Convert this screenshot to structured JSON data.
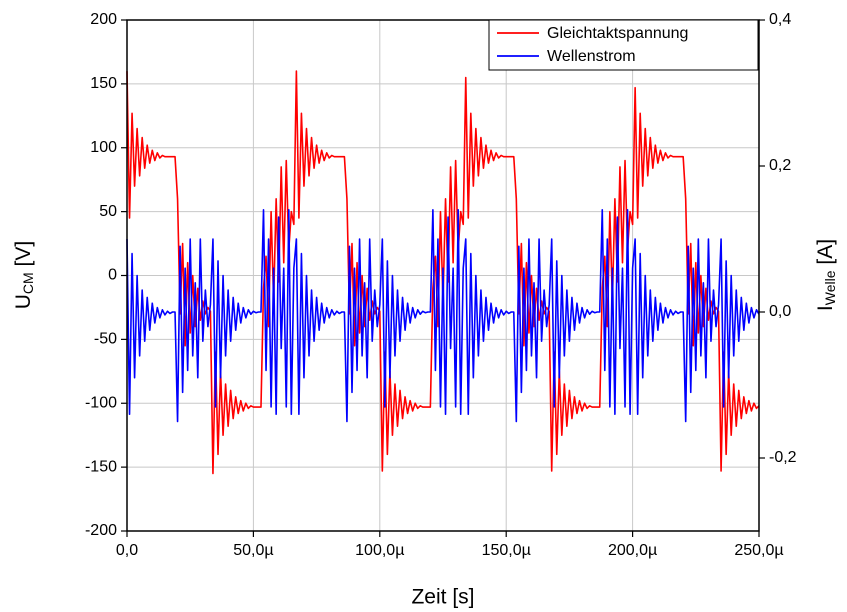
{
  "chart_data": {
    "type": "line",
    "xlabel": "Zeit [s]",
    "ylabel": {
      "main": "U",
      "sub": "CM",
      "unit": " [V]"
    },
    "y2label": {
      "main": "I",
      "sub": "Welle",
      "unit": " [A]"
    },
    "xlim": [
      0,
      250
    ],
    "xticks": [
      {
        "value": 0,
        "label": "0,0"
      },
      {
        "value": 50,
        "label": "50,0µ"
      },
      {
        "value": 100,
        "label": "100,0µ"
      },
      {
        "value": 150,
        "label": "150,0µ"
      },
      {
        "value": 200,
        "label": "200,0µ"
      },
      {
        "value": 250,
        "label": "250,0µ"
      }
    ],
    "ylim": [
      -200,
      200
    ],
    "yticks": [
      -200,
      -150,
      -100,
      -50,
      0,
      50,
      100,
      150,
      200
    ],
    "y2lim": [
      -0.3,
      0.4
    ],
    "y2ticks": [
      {
        "value": -0.2,
        "label": "-0,2"
      },
      {
        "value": 0,
        "label": "0,0"
      },
      {
        "value": 0.2,
        "label": "0,2"
      },
      {
        "value": 0.4,
        "label": "0,4"
      }
    ],
    "grid": true,
    "legend": "top-right",
    "x": [
      0,
      1,
      2,
      3,
      4,
      5,
      6,
      7,
      8,
      9,
      10,
      11,
      12,
      13,
      14,
      15,
      16,
      17,
      18,
      19,
      20,
      21,
      22,
      23,
      24,
      25,
      26,
      27,
      28,
      29,
      30,
      31,
      32,
      33,
      34,
      35,
      36,
      37,
      38,
      39,
      40,
      41,
      42,
      43,
      44,
      45,
      46,
      47,
      48,
      49,
      50,
      51,
      52,
      53,
      54,
      55,
      56,
      57,
      58,
      59,
      60,
      61,
      62,
      63,
      64,
      65,
      66,
      67,
      68,
      69,
      70,
      71,
      72,
      73,
      74,
      75,
      76,
      77,
      78,
      79,
      80,
      81,
      82,
      83,
      84,
      85,
      86,
      87,
      88,
      89,
      90,
      91,
      92,
      93,
      94,
      95,
      96,
      97,
      98,
      99,
      100,
      101,
      102,
      103,
      104,
      105,
      106,
      107,
      108,
      109,
      110,
      111,
      112,
      113,
      114,
      115,
      116,
      117,
      118,
      119,
      120,
      121,
      122,
      123,
      124,
      125,
      126,
      127,
      128,
      129,
      130,
      131,
      132,
      133,
      134,
      135,
      136,
      137,
      138,
      139,
      140,
      141,
      142,
      143,
      144,
      145,
      146,
      147,
      148,
      149,
      150,
      151,
      152,
      153,
      154,
      155,
      156,
      157,
      158,
      159,
      160,
      161,
      162,
      163,
      164,
      165,
      166,
      167,
      168,
      169,
      170,
      171,
      172,
      173,
      174,
      175,
      176,
      177,
      178,
      179,
      180,
      181,
      182,
      183,
      184,
      185,
      186,
      187,
      188,
      189,
      190,
      191,
      192,
      193,
      194,
      195,
      196,
      197,
      198,
      199,
      200,
      201,
      202,
      203,
      204,
      205,
      206,
      207,
      208,
      209,
      210,
      211,
      212,
      213,
      214,
      215,
      216,
      217,
      218,
      219,
      220,
      221,
      222,
      223,
      224,
      225,
      226,
      227,
      228,
      229,
      230,
      231,
      232,
      233,
      234,
      235,
      236,
      237,
      238,
      239,
      240,
      241,
      242,
      243,
      244,
      245,
      246,
      247,
      248,
      249,
      250
    ],
    "series": [
      {
        "name": "Gleichtaktspannung",
        "color": "#ff0000",
        "values": [
          160,
          45,
          127,
          70,
          115,
          78,
          108,
          84,
          102,
          88,
          98,
          90,
          96,
          92,
          94,
          93,
          93,
          93,
          93,
          93,
          60,
          -30,
          25,
          -55,
          10,
          -45,
          0,
          -40,
          -10,
          -35,
          -20,
          -30,
          -25,
          -28,
          -155,
          -60,
          -140,
          -75,
          -125,
          -85,
          -118,
          -90,
          -112,
          -95,
          -108,
          -98,
          -106,
          -100,
          -104,
          -102,
          -103,
          -103,
          -103,
          -103,
          -10,
          15,
          -40,
          50,
          -20,
          60,
          -5,
          85,
          10,
          90,
          20,
          50,
          40,
          160,
          45,
          127,
          70,
          115,
          78,
          108,
          84,
          102,
          88,
          98,
          90,
          96,
          92,
          94,
          93,
          93,
          93,
          93,
          93,
          60,
          -30,
          25,
          -55,
          10,
          -45,
          0,
          -40,
          -10,
          -35,
          -20,
          -30,
          -25,
          -28,
          -153,
          -60,
          -140,
          -75,
          -125,
          -85,
          -118,
          -90,
          -112,
          -95,
          -108,
          -98,
          -106,
          -100,
          -104,
          -102,
          -103,
          -103,
          -103,
          -103,
          -10,
          15,
          -40,
          50,
          -20,
          60,
          -5,
          85,
          10,
          90,
          20,
          50,
          40,
          155,
          45,
          127,
          70,
          115,
          78,
          108,
          84,
          102,
          88,
          98,
          90,
          96,
          92,
          94,
          93,
          93,
          93,
          93,
          93,
          60,
          -30,
          25,
          -55,
          10,
          -45,
          0,
          -40,
          -10,
          -35,
          -20,
          -30,
          -25,
          -28,
          -153,
          -60,
          -140,
          -75,
          -125,
          -85,
          -118,
          -90,
          -112,
          -95,
          -108,
          -98,
          -106,
          -100,
          -104,
          -102,
          -103,
          -103,
          -103,
          -103,
          -10,
          15,
          -40,
          50,
          -20,
          60,
          -5,
          85,
          10,
          90,
          20,
          50,
          40,
          147,
          45,
          127,
          70,
          115,
          78,
          108,
          84,
          102,
          88,
          98,
          90,
          96,
          92,
          94,
          93,
          93,
          93,
          93,
          93,
          60,
          -30,
          25,
          -55,
          10,
          -45,
          0,
          -40,
          -10,
          -35,
          -20,
          -30,
          -25,
          -28,
          -153,
          -60,
          -140,
          -75,
          -125,
          -85,
          -118,
          -90,
          -112,
          -95,
          -108,
          -98,
          -106,
          -100,
          -104,
          -102
        ]
      },
      {
        "name": "Wellenstrom",
        "color": "#0000ff",
        "axis": "y2",
        "values": [
          0.1,
          -0.14,
          0.08,
          -0.09,
          0.05,
          -0.06,
          0.03,
          -0.04,
          0.02,
          -0.025,
          0.012,
          -0.015,
          0.006,
          -0.008,
          0.003,
          -0.004,
          0.001,
          -0.002,
          0,
          0,
          -0.15,
          0.09,
          -0.11,
          0.06,
          -0.08,
          0.1,
          -0.06,
          0.04,
          -0.09,
          0.1,
          -0.04,
          0.03,
          -0.02,
          0.01,
          0.1,
          -0.13,
          0.07,
          -0.09,
          0.05,
          -0.06,
          0.03,
          -0.04,
          0.02,
          -0.025,
          0.012,
          -0.015,
          0.006,
          -0.008,
          0.003,
          -0.003,
          0.001,
          -0.001,
          0,
          0,
          0.14,
          -0.08,
          0.1,
          -0.13,
          0.06,
          -0.14,
          0.13,
          -0.05,
          0.06,
          -0.13,
          0.14,
          -0.14,
          0.06,
          0.1,
          -0.14,
          0.08,
          -0.09,
          0.05,
          -0.06,
          0.03,
          -0.04,
          0.02,
          -0.025,
          0.012,
          -0.015,
          0.006,
          -0.008,
          0.003,
          -0.004,
          0.001,
          -0.002,
          0,
          0,
          -0.15,
          0.09,
          -0.11,
          0.06,
          -0.08,
          0.1,
          -0.06,
          0.04,
          -0.09,
          0.1,
          -0.04,
          0.03,
          -0.02,
          0.01,
          0.1,
          -0.13,
          0.07,
          -0.09,
          0.05,
          -0.06,
          0.03,
          -0.04,
          0.02,
          -0.025,
          0.012,
          -0.015,
          0.006,
          -0.008,
          0.003,
          -0.003,
          0.001,
          -0.001,
          0,
          0,
          0.14,
          -0.08,
          0.1,
          -0.13,
          0.06,
          -0.14,
          0.13,
          -0.05,
          0.06,
          -0.13,
          0.14,
          -0.14,
          0.06,
          0.1,
          -0.14,
          0.08,
          -0.09,
          0.05,
          -0.06,
          0.03,
          -0.04,
          0.02,
          -0.025,
          0.012,
          -0.015,
          0.006,
          -0.008,
          0.003,
          -0.004,
          0.001,
          -0.002,
          0,
          0,
          -0.15,
          0.09,
          -0.11,
          0.06,
          -0.08,
          0.1,
          -0.06,
          0.04,
          -0.09,
          0.1,
          -0.04,
          0.03,
          -0.02,
          0.01,
          0.1,
          -0.13,
          0.07,
          -0.09,
          0.05,
          -0.06,
          0.03,
          -0.04,
          0.02,
          -0.025,
          0.012,
          -0.015,
          0.006,
          -0.008,
          0.003,
          -0.003,
          0.001,
          -0.001,
          0,
          0,
          0.14,
          -0.08,
          0.1,
          -0.13,
          0.06,
          -0.14,
          0.13,
          -0.05,
          0.06,
          -0.13,
          0.14,
          -0.14,
          0.06,
          0.1,
          -0.14,
          0.08,
          -0.09,
          0.05,
          -0.06,
          0.03,
          -0.04,
          0.02,
          -0.025,
          0.012,
          -0.015,
          0.006,
          -0.008,
          0.003,
          -0.004,
          0.001,
          -0.002,
          0,
          0,
          -0.15,
          0.09,
          -0.11,
          0.06,
          -0.08,
          0.1,
          -0.06,
          0.04,
          -0.09,
          0.1,
          -0.04,
          0.03,
          -0.02,
          0.01,
          0.1,
          -0.13,
          0.07,
          -0.09,
          0.05,
          -0.06,
          0.03,
          -0.04,
          0.02,
          -0.025,
          0.012,
          -0.015,
          0.006,
          -0.008,
          0.003,
          -0.003
        ]
      }
    ]
  }
}
